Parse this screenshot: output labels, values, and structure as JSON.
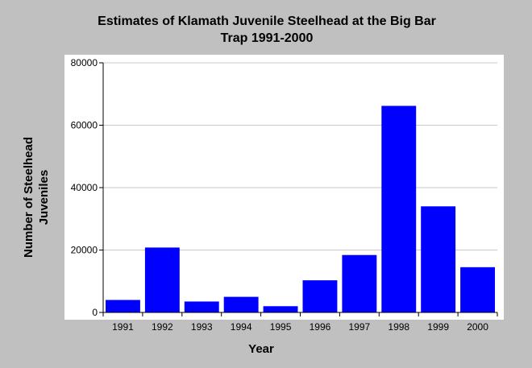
{
  "chart_data": {
    "type": "bar",
    "title_lines": [
      "Estimates of Klamath Juvenile Steelhead at the Big Bar",
      "Trap 1991-2000"
    ],
    "xlabel": "Year",
    "ylabel_lines": [
      "Number of Steelhead",
      "Juveniles"
    ],
    "categories": [
      "1991",
      "1992",
      "1993",
      "1994",
      "1995",
      "1996",
      "1997",
      "1998",
      "1999",
      "2000"
    ],
    "values": [
      4000,
      20800,
      3500,
      5000,
      2000,
      10300,
      18400,
      66200,
      34000,
      14500
    ],
    "ylim": [
      0,
      80000
    ],
    "yticks": [
      0,
      20000,
      40000,
      60000,
      80000
    ],
    "ytick_labels": [
      "0",
      "20000",
      "40000",
      "60000",
      "80000"
    ],
    "grid": true,
    "bar_color": "#0000ff",
    "plot_background": "#ffffff",
    "page_background": "#c0c0c0"
  }
}
